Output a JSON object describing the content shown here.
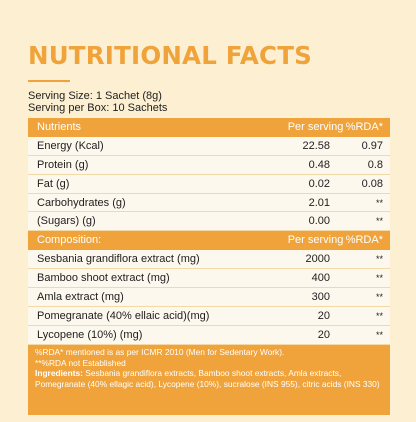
{
  "title": "NUTRITIONAL FACTS",
  "serving_size": "Serving Size: 1 Sachet (8g)",
  "serving_per_box": "Serving per Box: 10 Sachets",
  "nutrients_header": {
    "c1": "Nutrients",
    "c2": "Per serving",
    "c3": "%RDA*"
  },
  "nutrients": [
    {
      "name": "Energy (Kcal)",
      "per_serving": "22.58",
      "rda": "0.97"
    },
    {
      "name": "Protein (g)",
      "per_serving": "0.48",
      "rda": "0.8"
    },
    {
      "name": "Fat (g)",
      "per_serving": "0.02",
      "rda": "0.08"
    },
    {
      "name": "Carbohydrates (g)",
      "per_serving": "2.01",
      "rda": "**"
    },
    {
      "name": "(Sugars) (g)",
      "per_serving": "0.00",
      "rda": "**"
    }
  ],
  "composition_header": {
    "c1": "Composition:",
    "c2": "Per serving",
    "c3": "%RDA*"
  },
  "composition": [
    {
      "name": "Sesbania grandiflora extract (mg)",
      "per_serving": "2000",
      "rda": "**"
    },
    {
      "name": "Bamboo shoot extract (mg)",
      "per_serving": "400",
      "rda": "**"
    },
    {
      "name": "Amla extract (mg)",
      "per_serving": "300",
      "rda": "**"
    },
    {
      "name": "Pomegranate (40% ellaic acid)(mg)",
      "per_serving": "20",
      "rda": "**"
    },
    {
      "name": "Lycopene (10%) (mg)",
      "per_serving": "20",
      "rda": "**"
    }
  ],
  "footnote": {
    "line1": "%RDA* mentioned is as per ICMR 2010 (Men for Sedentary Work).",
    "line2": "**%RDA not Established",
    "ingredients_label": "Ingredients:",
    "ingredients_text": " Sesbania grandiflora extracts, Bamboo shoot extracts, Amla extracts, Pomegranate (40% ellagic acid), Lycopene (10%), sucralose (INS 955), citric acids (INS 330)"
  },
  "colors": {
    "accent": "#efa33a",
    "background": "#fdf0d2",
    "row": "#fdf8ee"
  }
}
